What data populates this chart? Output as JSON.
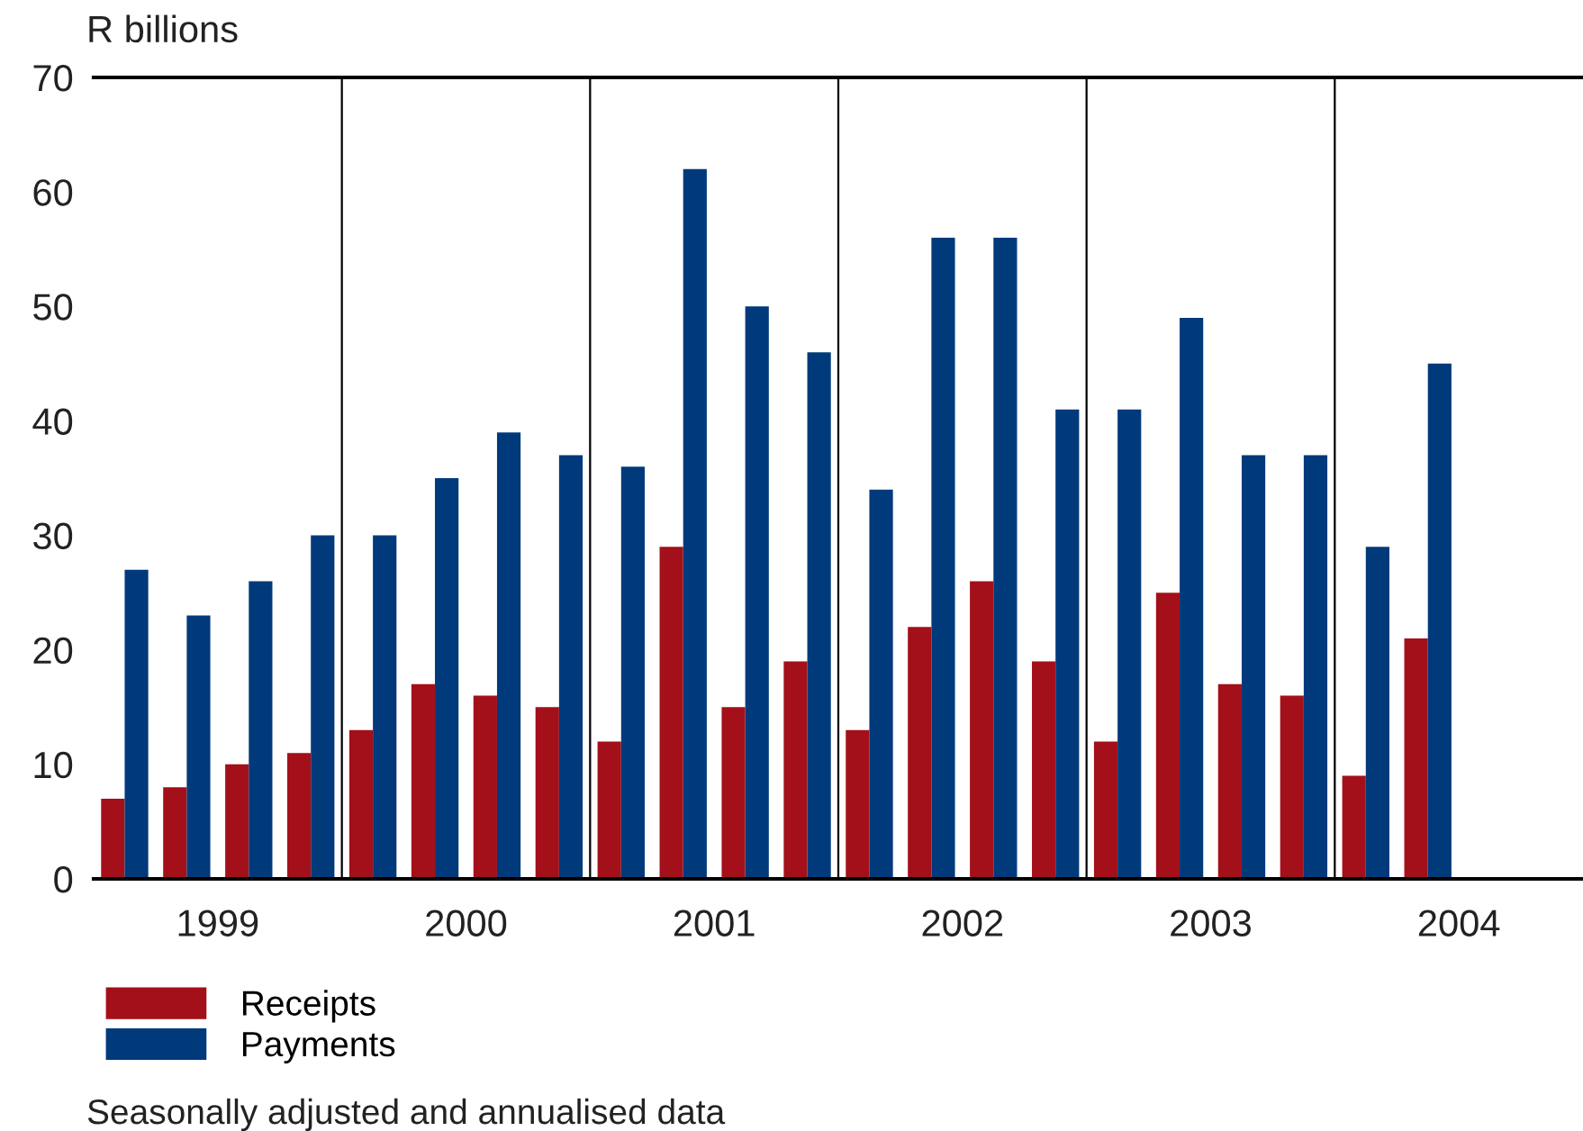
{
  "chart_data": {
    "type": "bar",
    "ylabel": "R billions",
    "x": [
      1999.125,
      1999.375,
      1999.625,
      1999.875,
      2000.125,
      2000.375,
      2000.625,
      2000.875,
      2001.125,
      2001.375,
      2001.625,
      2001.875,
      2002.125,
      2002.375,
      2002.625,
      2002.875,
      2003.125,
      2003.375,
      2003.625,
      2003.875,
      2004.125,
      2004.375
    ],
    "series": [
      {
        "name": "Receipts",
        "color": "#a3101a",
        "values": [
          7,
          8,
          10,
          11,
          13,
          17,
          16,
          15,
          12,
          29,
          15,
          19,
          13,
          22,
          26,
          19,
          12,
          25,
          17,
          16,
          9,
          21
        ]
      },
      {
        "name": "Payments",
        "color": "#003a7a",
        "values": [
          27,
          23,
          26,
          30,
          30,
          35,
          39,
          37,
          36,
          62,
          50,
          46,
          34,
          56,
          56,
          41,
          41,
          49,
          37,
          37,
          29,
          45
        ]
      }
    ],
    "xlim": [
      1999,
      2005
    ],
    "xticks": [
      {
        "value": 1999.5,
        "label": "1999"
      },
      {
        "value": 2000.5,
        "label": "2000"
      },
      {
        "value": 2001.5,
        "label": "2001"
      },
      {
        "value": 2002.5,
        "label": "2002"
      },
      {
        "value": 2003.5,
        "label": "2003"
      },
      {
        "value": 2004.5,
        "label": "2004"
      }
    ],
    "ylim": [
      0,
      70
    ],
    "yticks": [
      0,
      10,
      20,
      30,
      40,
      50,
      60,
      70
    ],
    "ref_lines": [
      {
        "axis": "x",
        "value": 2000,
        "label": null,
        "color": "#000000"
      },
      {
        "axis": "x",
        "value": 2001,
        "label": null,
        "color": "#000000"
      },
      {
        "axis": "x",
        "value": 2002,
        "label": null,
        "color": "#000000"
      },
      {
        "axis": "x",
        "value": 2003,
        "label": null,
        "color": "#000000"
      },
      {
        "axis": "x",
        "value": 2004,
        "label": null,
        "color": "#000000"
      }
    ],
    "grid": false,
    "legend": "bottom left",
    "annotations": [
      "Seasonally adjusted and annualised data"
    ]
  }
}
